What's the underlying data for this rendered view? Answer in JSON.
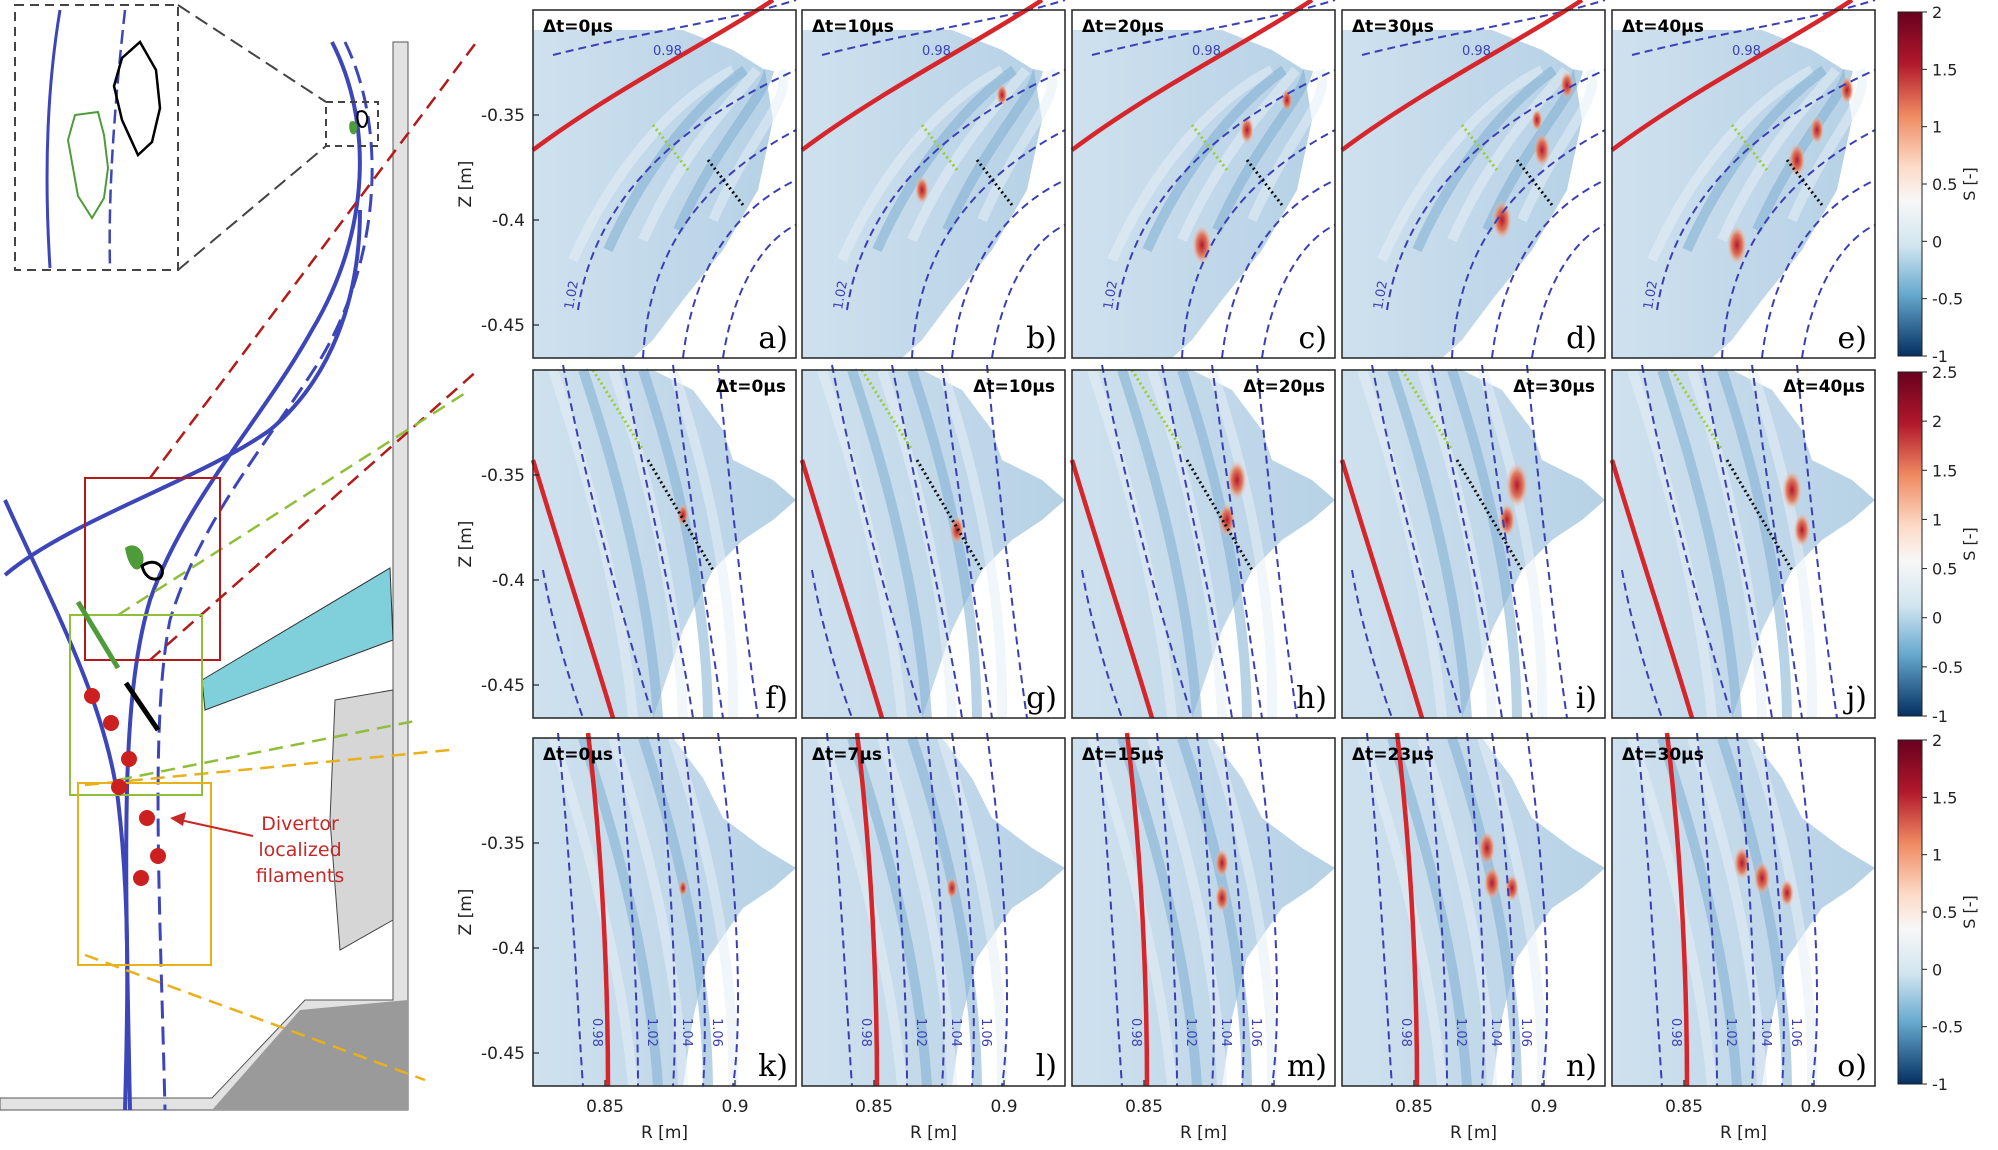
{
  "schematic": {
    "annotation": [
      "Divertor",
      "localized",
      "filaments"
    ],
    "colors": {
      "separatrix": "#3d46b8",
      "red_view": "#b31b1b",
      "green_view": "#8fbf3a",
      "yellow_view": "#e8b01a",
      "wall": "#d9d9d9",
      "baffle": "#7fd0db",
      "filament": "#cc1f1f"
    }
  },
  "panels": {
    "rows": [
      {
        "colorbar": {
          "ticks": [
            "2",
            "1.5",
            "1",
            "0.5",
            "0",
            "-0.5",
            "-1"
          ],
          "label": "S [-]",
          "range": [
            -1,
            2
          ]
        },
        "ytick_labels": [
          "-0.35",
          "-0.4",
          "-0.45"
        ],
        "ylabel": "Z [m]",
        "panels": [
          {
            "time": "Δt=0μs",
            "letter": "a)"
          },
          {
            "time": "Δt=10μs",
            "letter": "b)"
          },
          {
            "time": "Δt=20μs",
            "letter": "c)"
          },
          {
            "time": "Δt=30μs",
            "letter": "d)"
          },
          {
            "time": "Δt=40μs",
            "letter": "e)"
          }
        ],
        "contour_labels": [
          "0.98",
          "1.02"
        ]
      },
      {
        "colorbar": {
          "ticks": [
            "2.5",
            "2",
            "1.5",
            "1",
            "0.5",
            "0",
            "-0.5",
            "-1"
          ],
          "label": "S [-]",
          "range": [
            -1,
            2.5
          ]
        },
        "ytick_labels": [
          "-0.35",
          "-0.4",
          "-0.45"
        ],
        "ylabel": "Z [m]",
        "panels": [
          {
            "time": "Δt=0μs",
            "letter": "f)"
          },
          {
            "time": "Δt=10μs",
            "letter": "g)"
          },
          {
            "time": "Δt=20μs",
            "letter": "h)"
          },
          {
            "time": "Δt=30μs",
            "letter": "i)"
          },
          {
            "time": "Δt=40μs",
            "letter": "j)"
          }
        ]
      },
      {
        "colorbar": {
          "ticks": [
            "2",
            "1.5",
            "1",
            "0.5",
            "0",
            "-0.5",
            "-1"
          ],
          "label": "S [-]",
          "range": [
            -1,
            2
          ]
        },
        "ytick_labels": [
          "-0.35",
          "-0.4",
          "-0.45"
        ],
        "ylabel": "Z [m]",
        "panels": [
          {
            "time": "Δt=0μs",
            "letter": "k)"
          },
          {
            "time": "Δt=7μs",
            "letter": "l)"
          },
          {
            "time": "Δt=15μs",
            "letter": "m)"
          },
          {
            "time": "Δt=23μs",
            "letter": "n)"
          },
          {
            "time": "Δt=30μs",
            "letter": "o)"
          }
        ],
        "contour_labels": [
          "0.98",
          "1.02",
          "1.04",
          "1.06"
        ]
      }
    ],
    "xtick_labels": [
      "0.85",
      "0.9"
    ],
    "xlabel": "R [m]"
  }
}
